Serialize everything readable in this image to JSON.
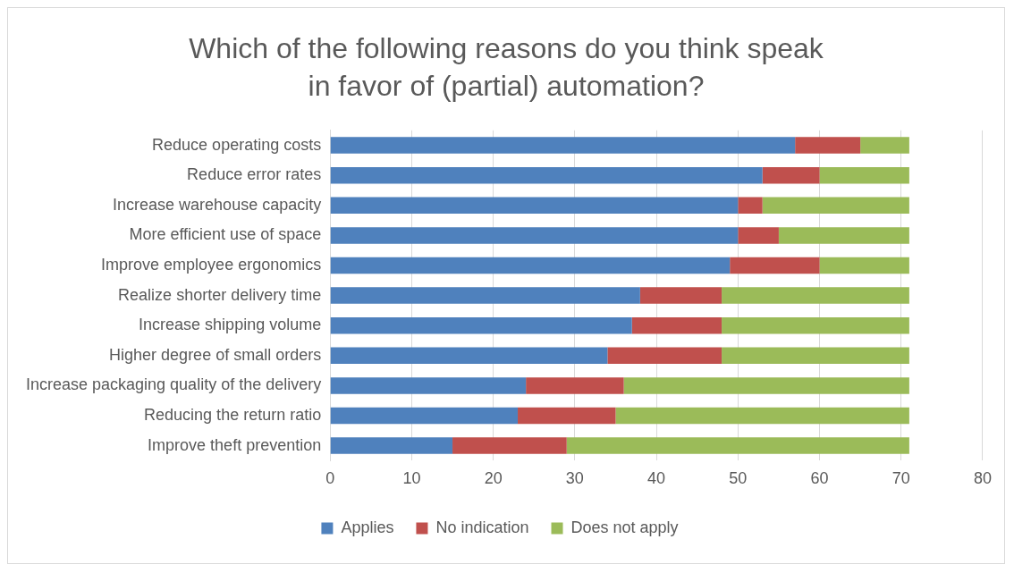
{
  "chart_data": {
    "type": "bar",
    "title": "Which of the following reasons do you think speak in favor of (partial) automation?",
    "orientation": "horizontal",
    "stacked": true,
    "categories": [
      "Reduce operating costs",
      "Reduce error rates",
      "Increase warehouse capacity",
      "More efficient use of space",
      "Improve employee ergonomics",
      "Realize shorter delivery time",
      "Increase shipping volume",
      "Higher degree of small orders",
      "Increase packaging quality of the delivery",
      "Reducing the return ratio",
      "Improve theft prevention"
    ],
    "series": [
      {
        "name": "Applies",
        "color": "#4f81bd",
        "values": [
          57,
          53,
          50,
          50,
          49,
          38,
          37,
          34,
          24,
          23,
          15
        ]
      },
      {
        "name": "No indication",
        "color": "#c0504d",
        "values": [
          8,
          7,
          3,
          5,
          11,
          10,
          11,
          14,
          12,
          12,
          14
        ]
      },
      {
        "name": "Does not apply",
        "color": "#9bbb59",
        "values": [
          6,
          11,
          18,
          16,
          11,
          23,
          23,
          23,
          35,
          36,
          42
        ]
      }
    ],
    "xlim": [
      0,
      80
    ],
    "xticks": [
      0,
      10,
      20,
      30,
      40,
      50,
      60,
      70,
      80
    ],
    "grid": "x",
    "legend": "bottom"
  }
}
